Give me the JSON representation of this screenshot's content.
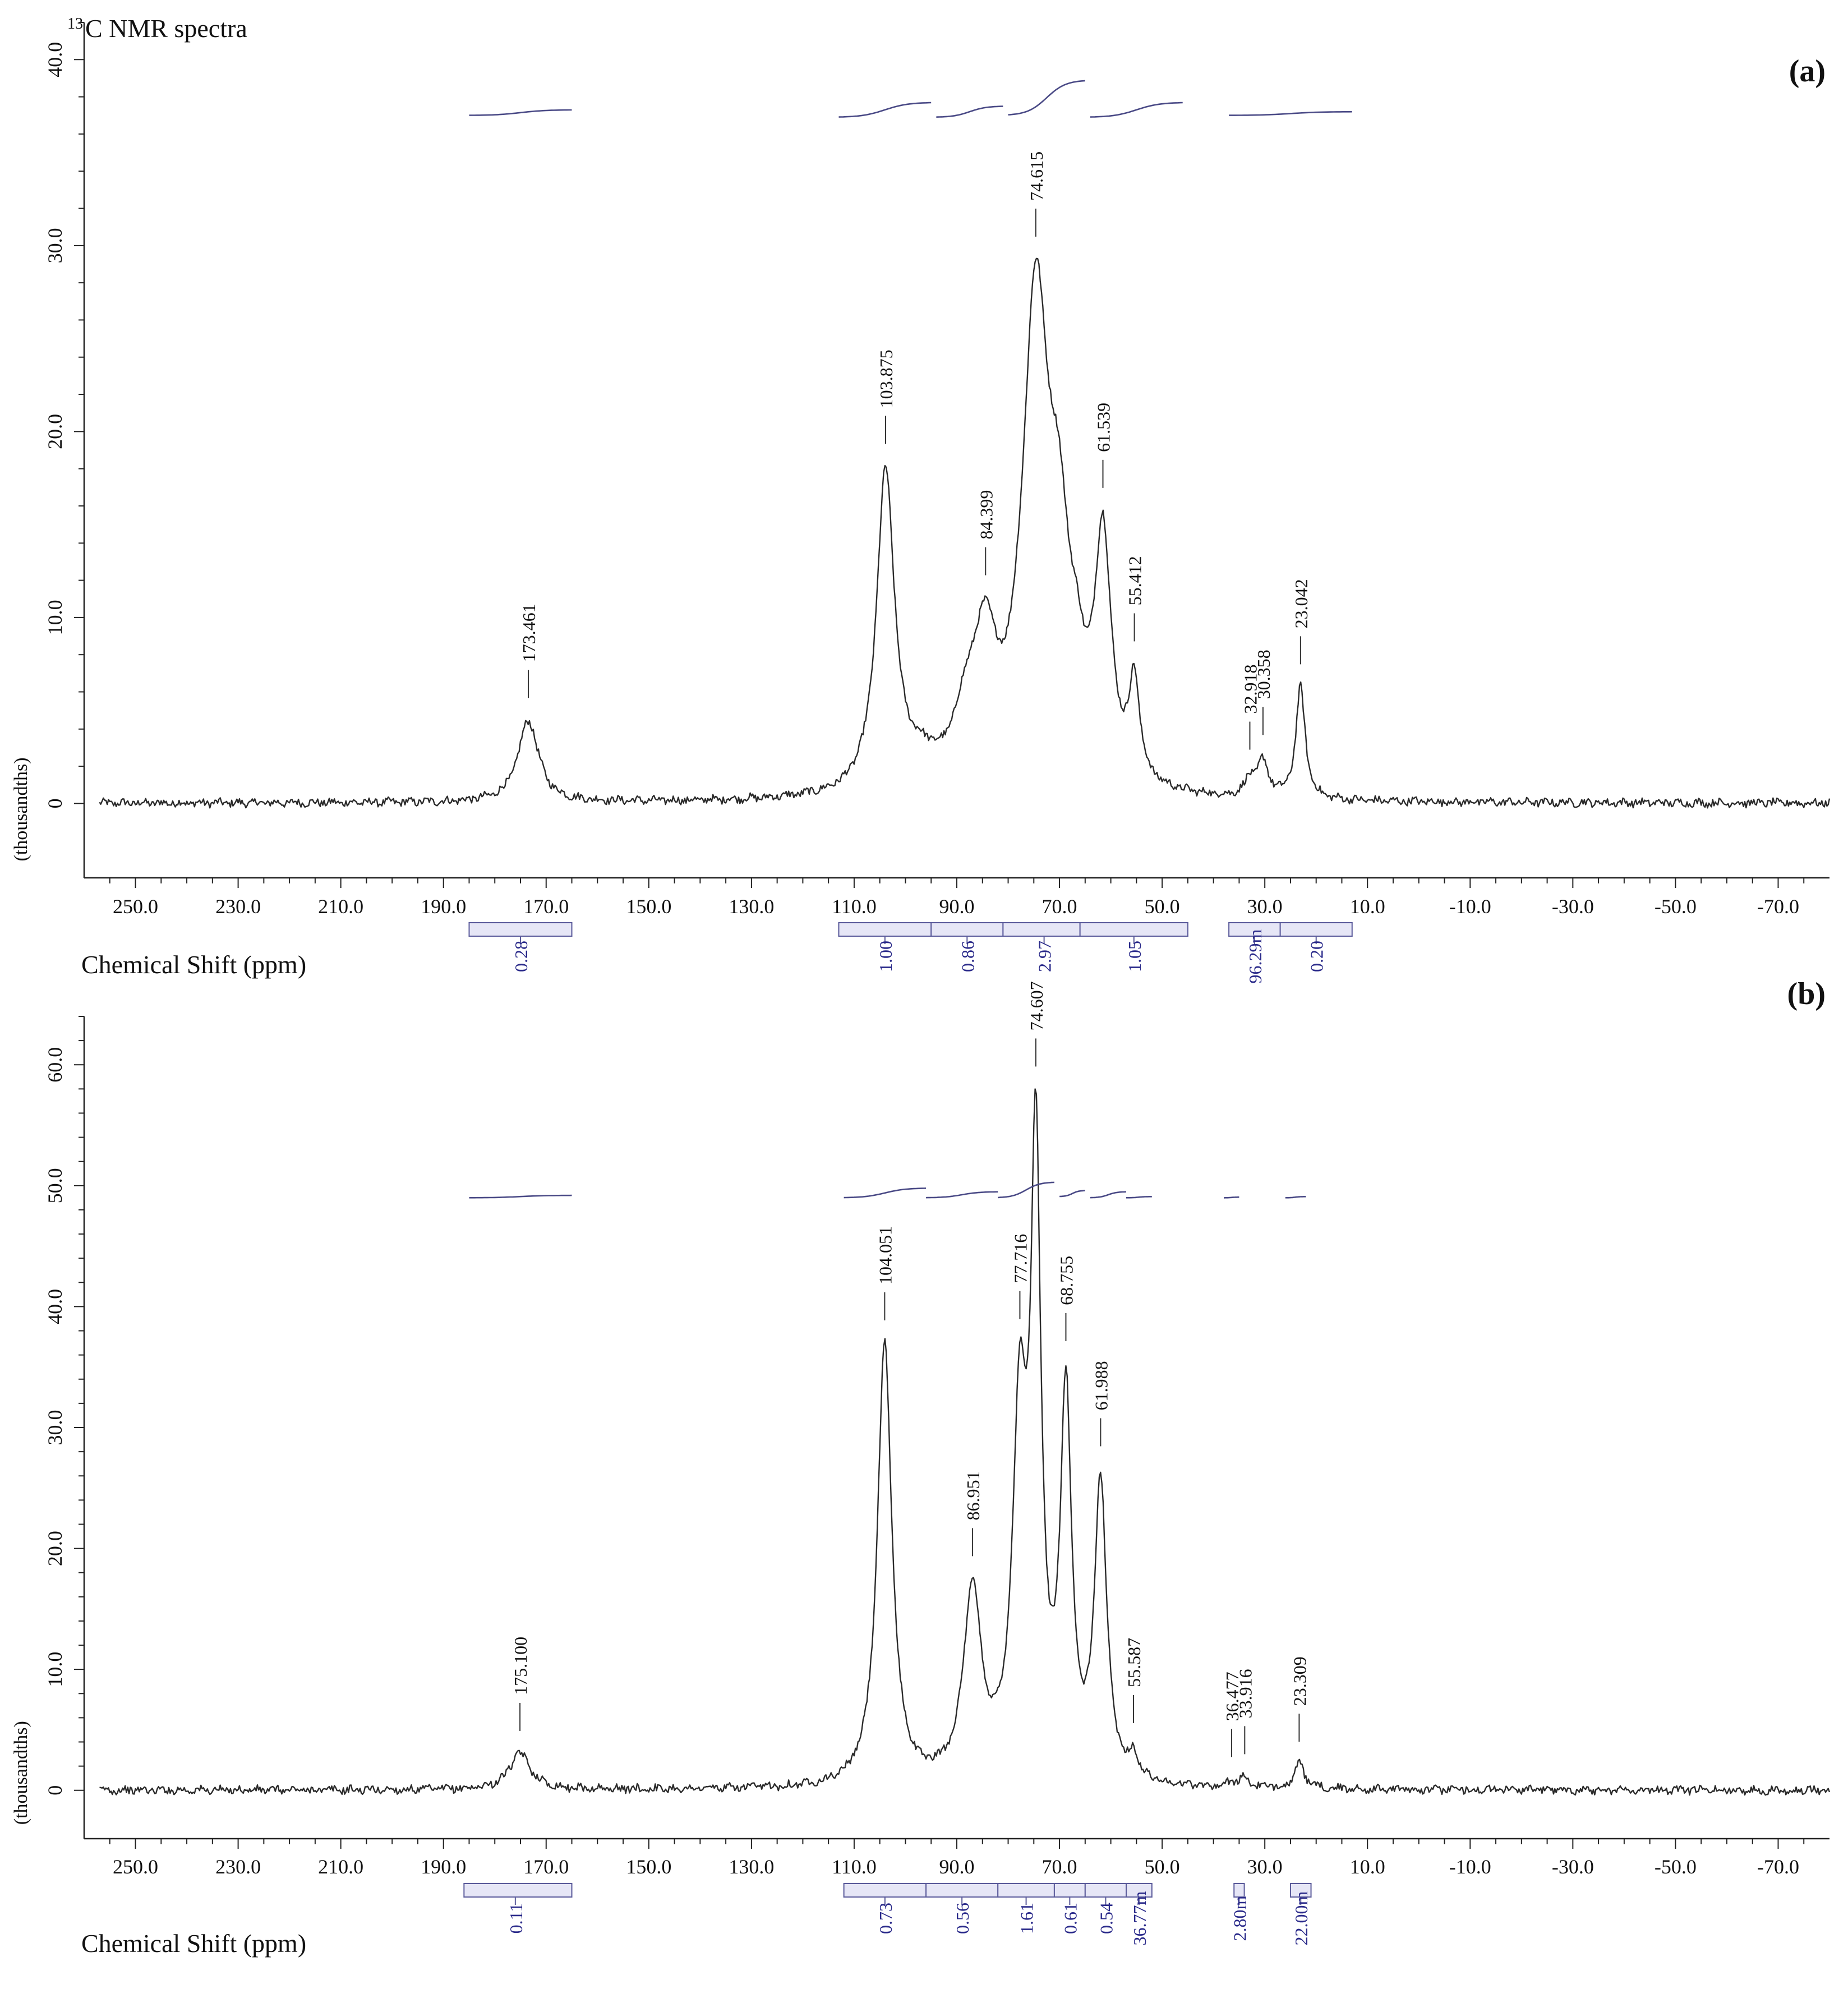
{
  "figure": {
    "heading": "C NMR spectra",
    "heading_sup": "13"
  },
  "chart_data": [
    {
      "type": "line",
      "panel_label": "(a)",
      "xlabel": "Chemical Shift (ppm)",
      "ylabel": "(thousandths)",
      "xlim": [
        260,
        -80
      ],
      "ylim": [
        -4,
        42
      ],
      "x_ticks": [
        250,
        230,
        210,
        190,
        170,
        150,
        130,
        110,
        90,
        70,
        50,
        30,
        10,
        -10,
        -30,
        -50,
        -70
      ],
      "x_tick_labels": [
        "250.0",
        "230.0",
        "210.0",
        "190.0",
        "170.0",
        "150.0",
        "130.0",
        "110.0",
        "90.0",
        "70.0",
        "50.0",
        "30.0",
        "10.0",
        "-10.0",
        "-30.0",
        "-50.0",
        "-70.0"
      ],
      "y_ticks": [
        0,
        10,
        20,
        30,
        40
      ],
      "y_tick_labels": [
        "0",
        "10.0",
        "20.0",
        "30.0",
        "40.0"
      ],
      "baseline_noise": 0.2,
      "peaks": [
        {
          "x": 173.461,
          "h": 4.4,
          "w": 2.4
        },
        {
          "x": 103.875,
          "h": 17.2,
          "w": 2.1
        },
        {
          "x": 97.0,
          "h": 1.2,
          "w": 4.0
        },
        {
          "x": 88.0,
          "h": 3.5,
          "w": 3.0
        },
        {
          "x": 84.399,
          "h": 6.4,
          "w": 2.5
        },
        {
          "x": 74.615,
          "h": 26.0,
          "w": 3.2
        },
        {
          "x": 70.0,
          "h": 9.5,
          "w": 2.5
        },
        {
          "x": 66.5,
          "h": 3.0,
          "w": 1.8
        },
        {
          "x": 61.539,
          "h": 12.8,
          "w": 1.9
        },
        {
          "x": 55.412,
          "h": 5.2,
          "w": 1.2
        },
        {
          "x": 32.918,
          "h": 0.9,
          "w": 1.2
        },
        {
          "x": 30.358,
          "h": 1.9,
          "w": 1.3
        },
        {
          "x": 23.042,
          "h": 6.0,
          "w": 1.1
        }
      ],
      "peak_labels": [
        {
          "x": 173.461,
          "text": "173.461"
        },
        {
          "x": 103.875,
          "text": "103.875"
        },
        {
          "x": 84.399,
          "text": "84.399"
        },
        {
          "x": 74.615,
          "text": "74.615"
        },
        {
          "x": 61.539,
          "text": "61.539"
        },
        {
          "x": 55.412,
          "text": "55.412"
        },
        {
          "x": 32.918,
          "text": "32.918"
        },
        {
          "x": 30.358,
          "text": "30.358"
        },
        {
          "x": 23.042,
          "text": "23.042"
        }
      ],
      "integration_curves": [
        {
          "from": 185,
          "to": 165,
          "y0": 37.0,
          "y1": 37.3
        },
        {
          "from": 113,
          "to": 95,
          "y0": 36.9,
          "y1": 37.7
        },
        {
          "from": 94,
          "to": 81,
          "y0": 36.9,
          "y1": 37.5
        },
        {
          "from": 80,
          "to": 65,
          "y0": 37.0,
          "y1": 38.9
        },
        {
          "from": 64,
          "to": 46,
          "y0": 36.9,
          "y1": 37.7
        },
        {
          "from": 37,
          "to": 13,
          "y0": 37.0,
          "y1": 37.2
        }
      ],
      "integrals": [
        {
          "from": 185,
          "to": 165,
          "center": 175,
          "value": "0.28"
        },
        {
          "from": 113,
          "to": 95,
          "center": 104,
          "value": "1.00"
        },
        {
          "from": 95,
          "to": 81,
          "center": 88,
          "value": "0.86"
        },
        {
          "from": 81,
          "to": 66,
          "center": 73,
          "value": "2.97"
        },
        {
          "from": 66,
          "to": 45,
          "center": 55.5,
          "value": "1.05"
        },
        {
          "from": 37,
          "to": 27,
          "center": 32,
          "value": "96.29m"
        },
        {
          "from": 27,
          "to": 13,
          "center": 20,
          "value": "0.20"
        }
      ]
    },
    {
      "type": "line",
      "panel_label": "(b)",
      "xlabel": "Chemical Shift (ppm)",
      "ylabel": "(thousandths)",
      "xlim": [
        260,
        -80
      ],
      "ylim": [
        -4,
        64
      ],
      "x_ticks": [
        250,
        230,
        210,
        190,
        170,
        150,
        130,
        110,
        90,
        70,
        50,
        30,
        10,
        -10,
        -30,
        -50,
        -70
      ],
      "x_tick_labels": [
        "250.0",
        "230.0",
        "210.0",
        "190.0",
        "170.0",
        "150.0",
        "130.0",
        "110.0",
        "90.0",
        "70.0",
        "50.0",
        "30.0",
        "10.0",
        "-10.0",
        "-30.0",
        "-50.0",
        "-70.0"
      ],
      "y_ticks": [
        0,
        10,
        20,
        30,
        40,
        50,
        60
      ],
      "y_tick_labels": [
        "0",
        "10.0",
        "20.0",
        "30.0",
        "40.0",
        "50.0",
        "60.0"
      ],
      "baseline_noise": 0.3,
      "peaks": [
        {
          "x": 175.1,
          "h": 3.0,
          "w": 2.5
        },
        {
          "x": 104.051,
          "h": 36.5,
          "w": 1.7
        },
        {
          "x": 86.951,
          "h": 15.5,
          "w": 2.1
        },
        {
          "x": 77.716,
          "h": 29.0,
          "w": 1.7
        },
        {
          "x": 74.607,
          "h": 49.0,
          "w": 1.2
        },
        {
          "x": 68.755,
          "h": 31.0,
          "w": 1.3
        },
        {
          "x": 61.988,
          "h": 24.5,
          "w": 1.4
        },
        {
          "x": 55.587,
          "h": 1.8,
          "w": 1.0
        },
        {
          "x": 36.477,
          "h": 0.5,
          "w": 1.0
        },
        {
          "x": 33.916,
          "h": 0.8,
          "w": 1.0
        },
        {
          "x": 23.309,
          "h": 2.0,
          "w": 1.2
        }
      ],
      "peak_labels": [
        {
          "x": 175.1,
          "text": "175.100"
        },
        {
          "x": 104.051,
          "text": "104.051"
        },
        {
          "x": 86.951,
          "text": "86.951"
        },
        {
          "x": 77.716,
          "text": "77.716"
        },
        {
          "x": 74.607,
          "text": "74.607"
        },
        {
          "x": 68.755,
          "text": "68.755"
        },
        {
          "x": 61.988,
          "text": "61.988"
        },
        {
          "x": 55.587,
          "text": "55.587"
        },
        {
          "x": 36.477,
          "text": "36.477"
        },
        {
          "x": 33.916,
          "text": "33.916"
        },
        {
          "x": 23.309,
          "text": "23.309"
        }
      ],
      "integration_curves": [
        {
          "from": 185,
          "to": 165,
          "y0": 49.0,
          "y1": 49.2
        },
        {
          "from": 112,
          "to": 96,
          "y0": 49.0,
          "y1": 49.8
        },
        {
          "from": 96,
          "to": 82,
          "y0": 49.0,
          "y1": 49.5
        },
        {
          "from": 82,
          "to": 71,
          "y0": 49.0,
          "y1": 50.3
        },
        {
          "from": 70,
          "to": 65,
          "y0": 49.1,
          "y1": 49.6
        },
        {
          "from": 64,
          "to": 57,
          "y0": 49.0,
          "y1": 49.5
        },
        {
          "from": 57,
          "to": 52,
          "y0": 49.0,
          "y1": 49.1
        },
        {
          "from": 38,
          "to": 35,
          "y0": 49.0,
          "y1": 49.05
        },
        {
          "from": 26,
          "to": 22,
          "y0": 49.0,
          "y1": 49.1
        }
      ],
      "integrals": [
        {
          "from": 186,
          "to": 165,
          "center": 176,
          "value": "0.11"
        },
        {
          "from": 112,
          "to": 96,
          "center": 104,
          "value": "0.73"
        },
        {
          "from": 96,
          "to": 82,
          "center": 89,
          "value": "0.56"
        },
        {
          "from": 82,
          "to": 71,
          "center": 76.5,
          "value": "1.61"
        },
        {
          "from": 71,
          "to": 65,
          "center": 68,
          "value": "0.61"
        },
        {
          "from": 65,
          "to": 57,
          "center": 61,
          "value": "0.54"
        },
        {
          "from": 57,
          "to": 52,
          "center": 54.5,
          "value": "36.77m"
        },
        {
          "from": 36,
          "to": 34,
          "center": 35,
          "value": "2.80m"
        },
        {
          "from": 25,
          "to": 21,
          "center": 23,
          "value": "22.00m"
        }
      ]
    }
  ]
}
